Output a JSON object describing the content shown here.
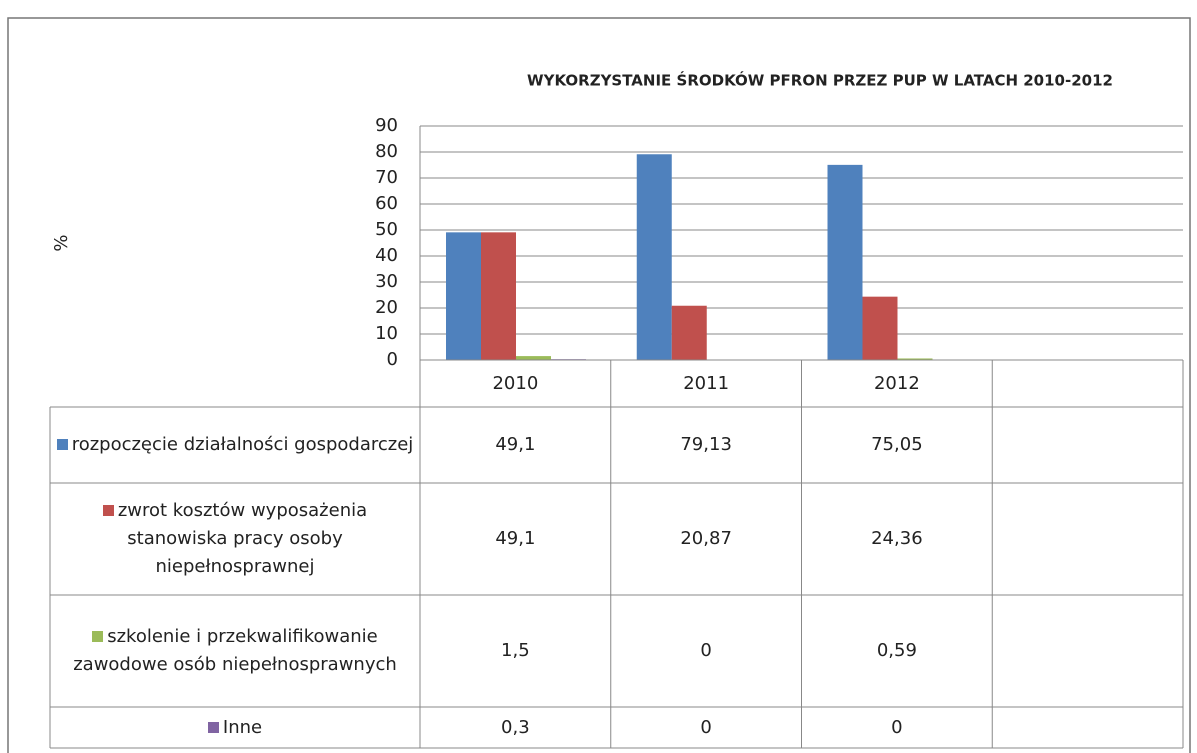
{
  "chart_data": {
    "type": "bar",
    "title": "WYKORZYSTANIE ŚRODKÓW PFRON PRZEZ  PUP W LATACH 2010-2012",
    "y_label": "%",
    "categories": [
      "2010",
      "2011",
      "2012",
      null
    ],
    "series": [
      {
        "name": "rozpoczęcie działalności gospodarczej",
        "color": "#4f81bd",
        "values": [
          49.1,
          79.13,
          75.05,
          null
        ],
        "value_labels": [
          "49,1",
          "79,13",
          "75,05",
          null
        ]
      },
      {
        "name": "zwrot kosztów wyposażenia stanowiska pracy osoby niepełnosprawnej",
        "color": "#c0504d",
        "values": [
          49.1,
          20.87,
          24.36,
          null
        ],
        "value_labels": [
          "49,1",
          "20,87",
          "24,36",
          null
        ]
      },
      {
        "name": "szkolenie i przekwalifikowanie zawodowe osób niepełnosprawnych",
        "color": "#9bbb59",
        "values": [
          1.5,
          0,
          0.59,
          null
        ],
        "value_labels": [
          "1,5",
          "0",
          "0,59",
          null
        ]
      },
      {
        "name": "Inne",
        "color": "#8064a2",
        "values": [
          0.3,
          0,
          0,
          null
        ],
        "value_labels": [
          "0,3",
          "0",
          "0",
          null
        ]
      }
    ],
    "ylim": [
      0,
      90
    ],
    "yticks": [
      0,
      10,
      20,
      30,
      40,
      50,
      60,
      70,
      80,
      90
    ],
    "grid": true
  }
}
